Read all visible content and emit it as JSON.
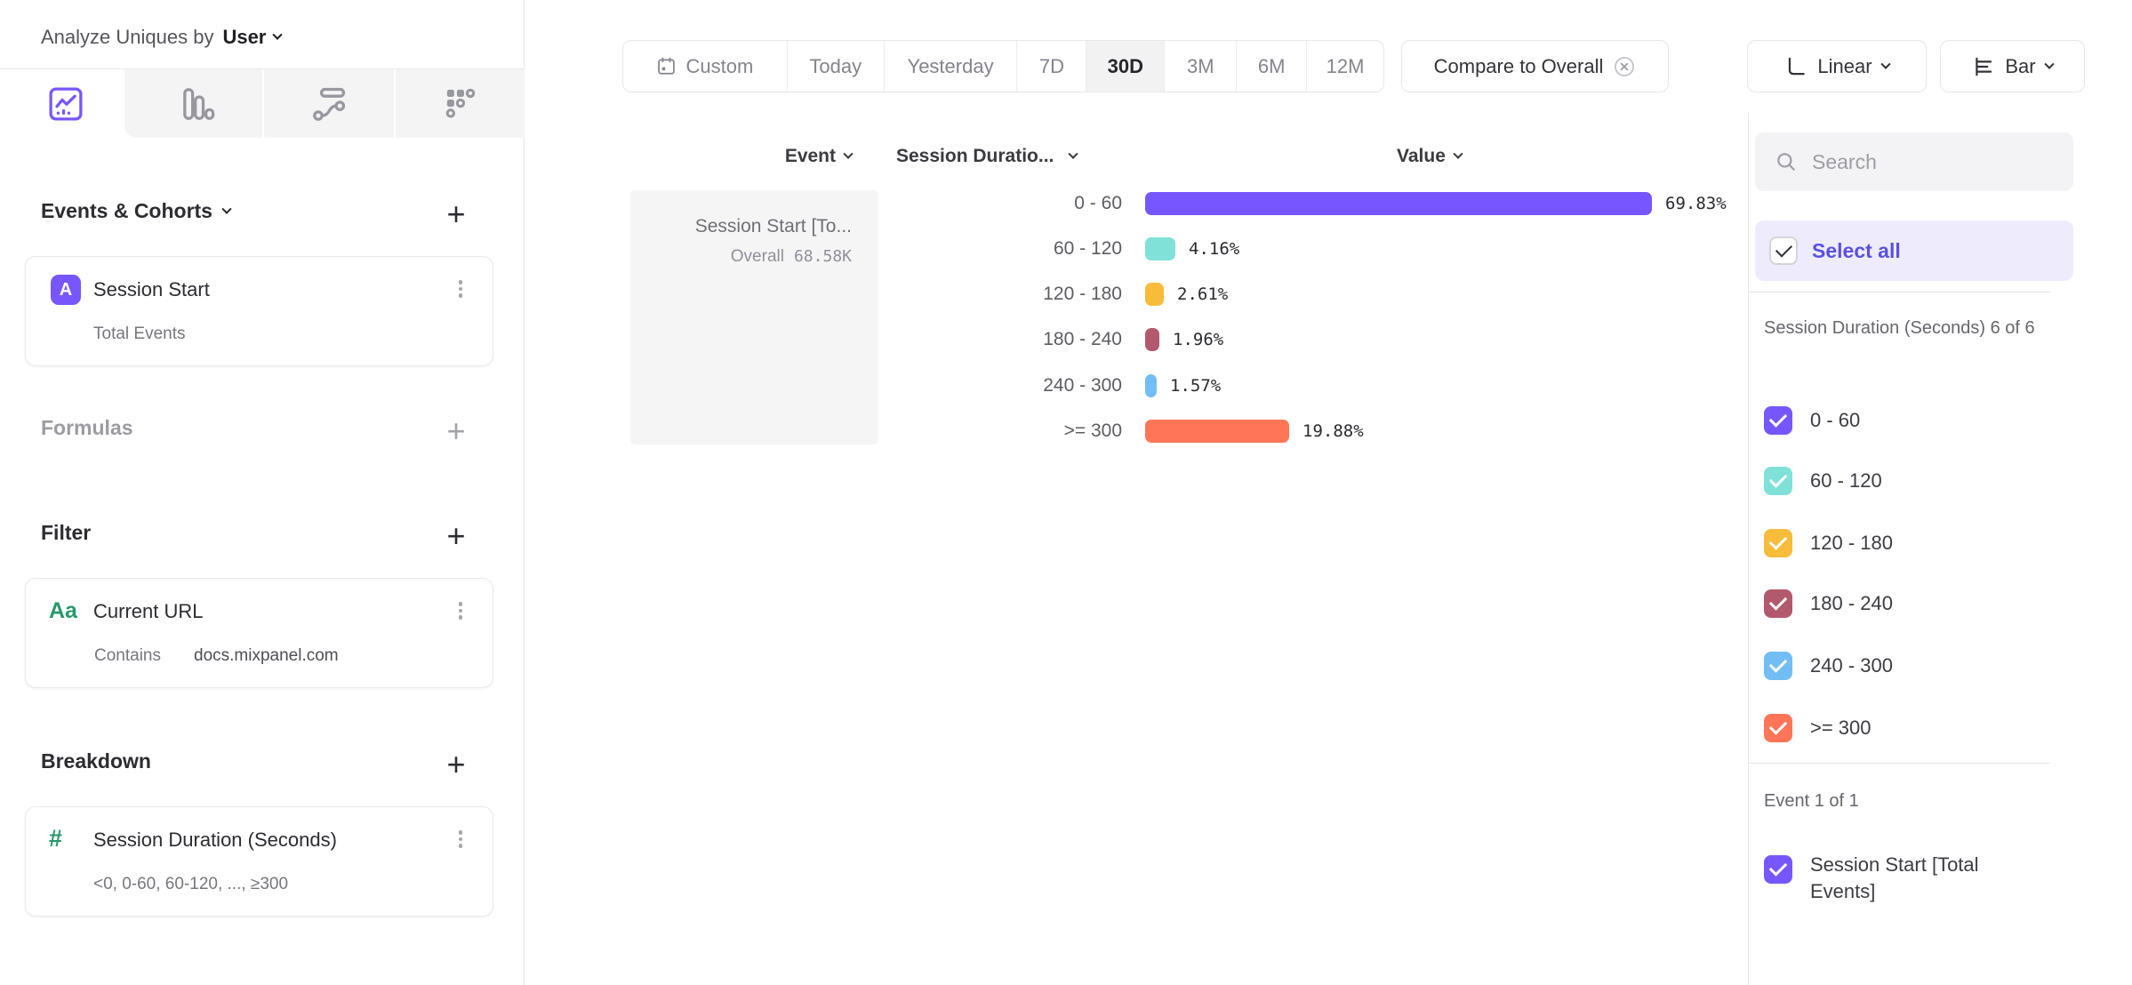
{
  "header": {
    "analyze_label": "Analyze Uniques by",
    "analyze_value": "User"
  },
  "tabs": {
    "items": [
      {
        "icon": "insights-chart-icon",
        "active": true
      },
      {
        "icon": "funnels-bars-icon",
        "active": false
      },
      {
        "icon": "flows-icon",
        "active": false
      },
      {
        "icon": "retention-grid-icon",
        "active": false
      }
    ]
  },
  "builder": {
    "events": {
      "title": "Events & Cohorts",
      "card": {
        "badge": "A",
        "title": "Session Start",
        "subtitle": "Total Events"
      }
    },
    "formulas": {
      "title": "Formulas"
    },
    "filter": {
      "title": "Filter",
      "card": {
        "badge": "Aa",
        "title": "Current URL",
        "operator": "Contains",
        "value": "docs.mixpanel.com"
      }
    },
    "breakdown": {
      "title": "Breakdown",
      "card": {
        "badge": "#",
        "title": "Session Duration (Seconds)",
        "subtitle": "<0, 0-60, 60-120, ..., ≥300"
      }
    }
  },
  "toolbar": {
    "date_ranges": [
      "Custom",
      "Today",
      "Yesterday",
      "7D",
      "30D",
      "3M",
      "6M",
      "12M"
    ],
    "active_range": "30D",
    "compare_label": "Compare to Overall",
    "scale_label": "Linear",
    "chart_type_label": "Bar"
  },
  "chart": {
    "columns": {
      "event": "Event",
      "breakdown": "Session Duratio...",
      "value": "Value"
    },
    "event_cell": {
      "title": "Session Start [To...",
      "overall_label": "Overall",
      "overall_value": "68.58K"
    },
    "rows": [
      {
        "label": "0 - 60",
        "value": "69.83%",
        "pct": 69.83,
        "color": "#7856FF"
      },
      {
        "label": "60 - 120",
        "value": "4.16%",
        "pct": 4.16,
        "color": "#80E1D9"
      },
      {
        "label": "120 - 180",
        "value": "2.61%",
        "pct": 2.61,
        "color": "#F8BC3B"
      },
      {
        "label": "180 - 240",
        "value": "1.96%",
        "pct": 1.96,
        "color": "#B2596E"
      },
      {
        "label": "240 - 300",
        "value": "1.57%",
        "pct": 1.57,
        "color": "#72BEF4"
      },
      {
        "label": ">= 300",
        "value": "19.88%",
        "pct": 19.88,
        "color": "#FF7557"
      }
    ]
  },
  "chart_data": {
    "type": "bar",
    "orientation": "horizontal",
    "title": "Session Start [Total Events] by Session Duration (Seconds)",
    "categories": [
      "0 - 60",
      "60 - 120",
      "120 - 180",
      "180 - 240",
      "240 - 300",
      ">= 300"
    ],
    "values": [
      69.83,
      4.16,
      2.61,
      1.96,
      1.57,
      19.88
    ],
    "unit": "%",
    "overall_value": "68.58K",
    "xlim": [
      0,
      70
    ],
    "colors": [
      "#7856FF",
      "#80E1D9",
      "#F8BC3B",
      "#B2596E",
      "#72BEF4",
      "#FF7557"
    ]
  },
  "right_panel": {
    "search_placeholder": "Search",
    "select_all_label": "Select all",
    "groups": [
      {
        "label": "Session Duration (Seconds) 6 of 6",
        "items": [
          {
            "label": "0 - 60",
            "color": "#7856FF",
            "checked": true
          },
          {
            "label": "60 - 120",
            "color": "#80E1D9",
            "checked": true
          },
          {
            "label": "120 - 180",
            "color": "#F8BC3B",
            "checked": true
          },
          {
            "label": "180 - 240",
            "color": "#B2596E",
            "checked": true
          },
          {
            "label": "240 - 300",
            "color": "#72BEF4",
            "checked": true
          },
          {
            "label": ">= 300",
            "color": "#FF7557",
            "checked": true
          }
        ]
      },
      {
        "label": "Event 1 of 1",
        "items": [
          {
            "label": "Session Start [Total Events]",
            "color": "#7856FF",
            "checked": true
          }
        ]
      }
    ]
  },
  "colors": {
    "accent": "#7856FF",
    "select_all_text": "#5A50E2",
    "badge_green": "#27996B"
  }
}
